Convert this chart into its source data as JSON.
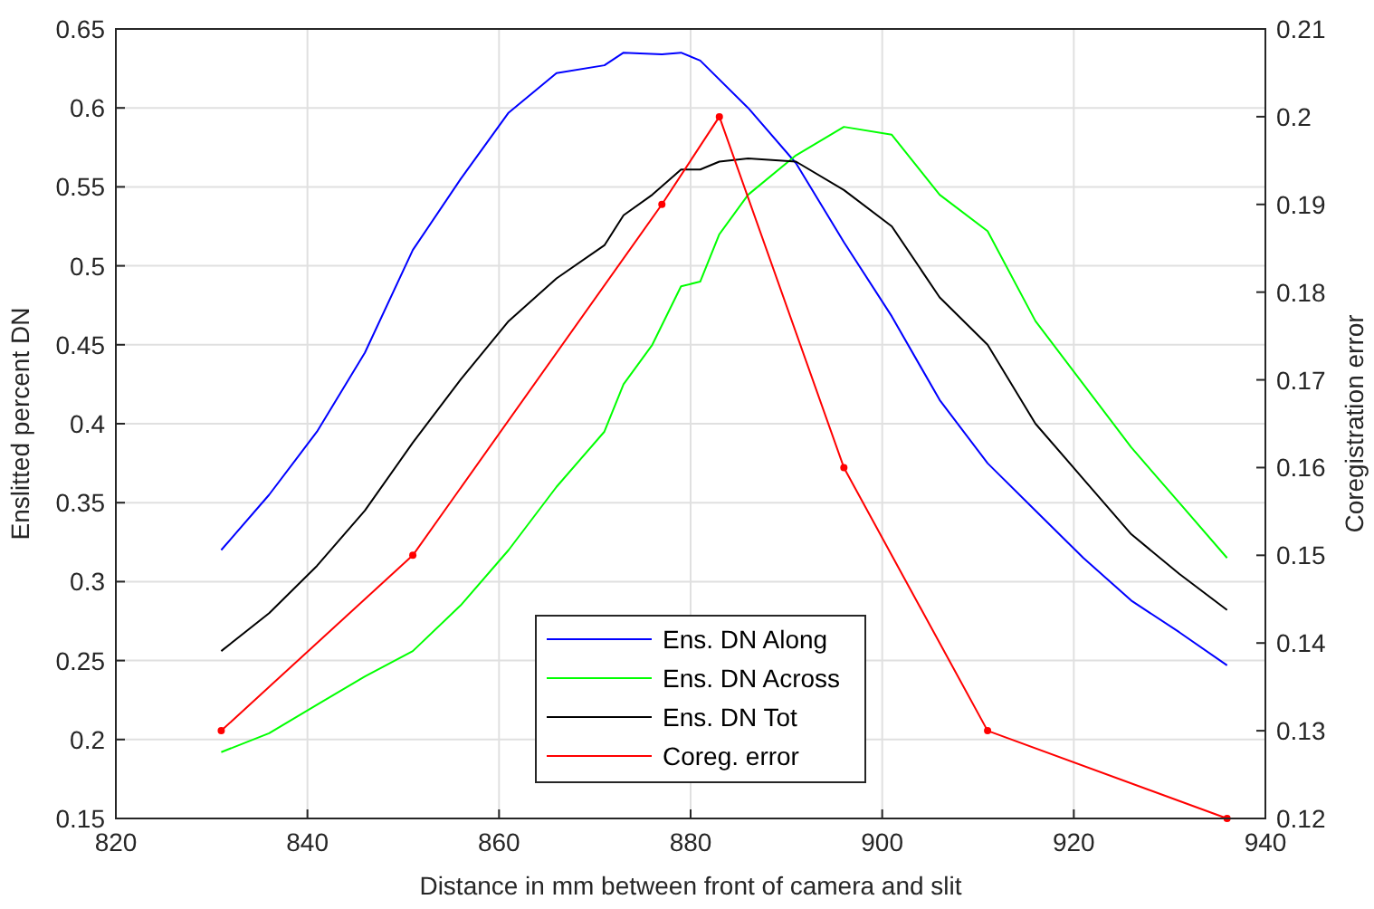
{
  "chart_data": {
    "type": "line",
    "xlabel": "Distance in mm between front of camera and slit",
    "ylabel": "Enslitted percent DN",
    "y2label": "Coregistration error",
    "xlim": [
      820,
      940
    ],
    "xticks": [
      820,
      840,
      860,
      880,
      900,
      920,
      940
    ],
    "ylim": [
      0.15,
      0.65
    ],
    "yticks": [
      0.15,
      0.2,
      0.25,
      0.3,
      0.35,
      0.4,
      0.45,
      0.5,
      0.55,
      0.6,
      0.65
    ],
    "y2lim": [
      0.12,
      0.21
    ],
    "y2ticks": [
      0.12,
      0.13,
      0.14,
      0.15,
      0.16,
      0.17,
      0.18,
      0.19,
      0.2,
      0.21
    ],
    "grid": true,
    "legend": "bottom",
    "series": [
      {
        "name": "Ens. DN Along",
        "color": "#0000ff",
        "x": [
          831,
          836,
          841,
          846,
          851,
          856,
          861,
          866,
          871,
          873,
          877,
          879,
          881,
          886,
          891,
          896,
          901,
          906,
          911,
          916,
          921,
          926,
          931,
          936
        ],
        "values": [
          0.32,
          0.355,
          0.395,
          0.445,
          0.51,
          0.555,
          0.597,
          0.622,
          0.627,
          0.635,
          0.634,
          0.635,
          0.63,
          0.6,
          0.565,
          0.515,
          0.468,
          0.415,
          0.375,
          0.345,
          0.315,
          0.288,
          0.268,
          0.247
        ]
      },
      {
        "name": "Ens. DN Across",
        "color": "#00ff00",
        "x": [
          831,
          836,
          841,
          846,
          851,
          856,
          861,
          866,
          871,
          873,
          876,
          879,
          881,
          883,
          886,
          891,
          896,
          901,
          906,
          911,
          916,
          921,
          926,
          931,
          936
        ],
        "values": [
          0.192,
          0.204,
          0.222,
          0.24,
          0.256,
          0.285,
          0.32,
          0.36,
          0.395,
          0.425,
          0.45,
          0.487,
          0.49,
          0.52,
          0.545,
          0.57,
          0.588,
          0.583,
          0.545,
          0.522,
          0.465,
          0.425,
          0.385,
          0.35,
          0.315
        ]
      },
      {
        "name": "Ens. DN Tot",
        "color": "#000000",
        "x": [
          831,
          836,
          841,
          846,
          851,
          856,
          861,
          866,
          871,
          873,
          876,
          879,
          881,
          883,
          886,
          891,
          896,
          901,
          906,
          911,
          916,
          921,
          926,
          931,
          936
        ],
        "values": [
          0.256,
          0.28,
          0.31,
          0.345,
          0.388,
          0.428,
          0.465,
          0.492,
          0.513,
          0.532,
          0.545,
          0.561,
          0.561,
          0.566,
          0.568,
          0.566,
          0.548,
          0.525,
          0.48,
          0.45,
          0.4,
          0.365,
          0.33,
          0.305,
          0.282
        ]
      },
      {
        "name": "Coreg. error",
        "color": "#ff0000",
        "axis": "y2",
        "marker": "circle",
        "x": [
          831,
          851,
          877,
          883,
          896,
          911,
          936
        ],
        "values": [
          0.13,
          0.15,
          0.19,
          0.2,
          0.16,
          0.13,
          0.12
        ]
      }
    ]
  }
}
